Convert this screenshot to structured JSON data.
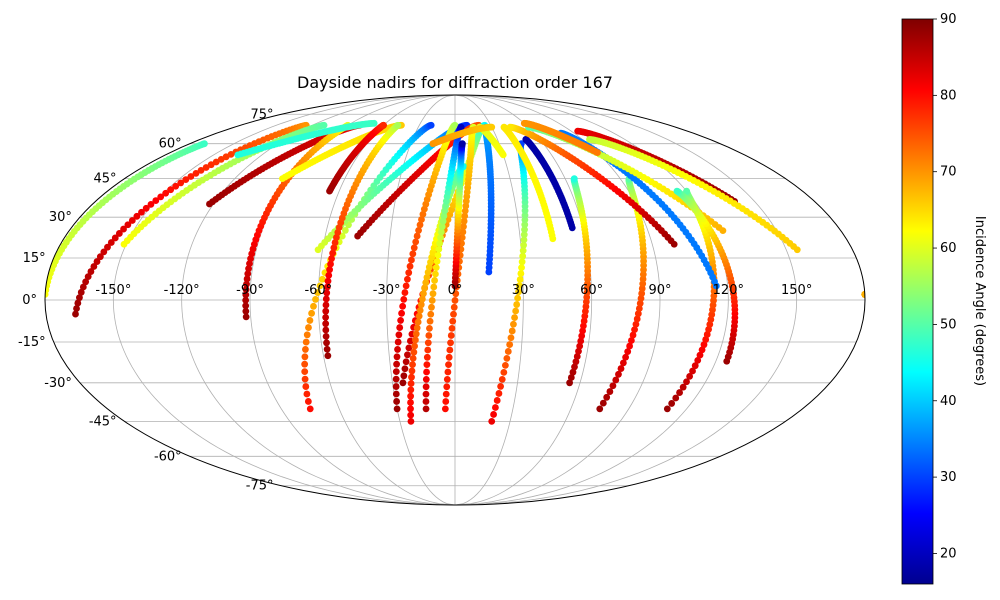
{
  "chart_data": {
    "type": "scatter",
    "projection": "mollweide",
    "title": "Dayside nadirs for diffraction order 167",
    "grid": true,
    "lon_ticks": [
      "-150°",
      "-120°",
      "-90°",
      "-60°",
      "-30°",
      "0°",
      "30°",
      "60°",
      "90°",
      "120°",
      "150°"
    ],
    "lon_tick_values": [
      -150,
      -120,
      -90,
      -60,
      -30,
      0,
      30,
      60,
      90,
      120,
      150
    ],
    "lat_ticks": [
      "-75°",
      "-60°",
      "-45°",
      "-30°",
      "-15°",
      "0°",
      "15°",
      "30°",
      "45°",
      "60°",
      "75°"
    ],
    "lat_tick_values": [
      -75,
      -60,
      -45,
      -30,
      -15,
      0,
      15,
      30,
      45,
      60,
      75
    ],
    "colorbar": {
      "label": "Incidence Angle (degrees)",
      "min": 16,
      "max": 90,
      "ticks": [
        20,
        30,
        40,
        50,
        60,
        70,
        80,
        90
      ],
      "tick_labels": [
        "20",
        "30",
        "40",
        "50",
        "60",
        "70",
        "80",
        "90"
      ],
      "colormap": "jet"
    },
    "marker_color_edge": "#000000",
    "tracks": [
      {
        "lon0": -180,
        "lat0": 2,
        "lon1": -170,
        "lat1": 60,
        "c0": 62,
        "c1": 48
      },
      {
        "lon0": -167,
        "lat0": -5,
        "lon1": -125,
        "lat1": 69,
        "c0": 88,
        "c1": 70
      },
      {
        "lon0": -151,
        "lat0": 20,
        "lon1": -110,
        "lat1": 69,
        "c0": 62,
        "c1": 50
      },
      {
        "lon0": -122,
        "lat0": 35,
        "lon1": -80,
        "lat1": 69,
        "c0": 88,
        "c1": 82
      },
      {
        "lon0": -92,
        "lat0": -6,
        "lon1": -90,
        "lat1": 69,
        "c0": 88,
        "c1": 60
      },
      {
        "lon0": -94,
        "lat0": 45,
        "lon1": -45,
        "lat1": 69,
        "c0": 62,
        "c1": 66
      },
      {
        "lon0": -65,
        "lat0": 40,
        "lon1": -60,
        "lat1": 69,
        "c0": 88,
        "c1": 78
      },
      {
        "lon0": -75,
        "lat0": -40,
        "lon1": -20,
        "lat1": 69,
        "c0": 80,
        "c1": 30
      },
      {
        "lon0": -62,
        "lat0": 18,
        "lon1": 10,
        "lat1": 69,
        "c0": 60,
        "c1": 28
      },
      {
        "lon0": -58,
        "lat0": -20,
        "lon1": -48,
        "lat1": 69,
        "c0": 88,
        "c1": 56
      },
      {
        "lon0": -45,
        "lat0": 23,
        "lon1": 20,
        "lat1": 69,
        "c0": 88,
        "c1": 75
      },
      {
        "lon0": -30,
        "lat0": -40,
        "lon1": 0,
        "lat1": 69,
        "c0": 88,
        "c1": 56
      },
      {
        "lon0": -25,
        "lat0": -30,
        "lon1": 25,
        "lat1": 69,
        "c0": 88,
        "c1": 44
      },
      {
        "lon0": -24,
        "lat0": -45,
        "lon1": 5,
        "lat1": 50,
        "c0": 82,
        "c1": 45
      },
      {
        "lon0": -15,
        "lat0": -40,
        "lon1": 5,
        "lat1": 68,
        "c0": 86,
        "c1": 20
      },
      {
        "lon0": -5,
        "lat0": -40,
        "lon1": 15,
        "lat1": 68,
        "c0": 80,
        "c1": 60
      },
      {
        "lon0": 0,
        "lat0": 5,
        "lon1": 5,
        "lat1": 60,
        "c0": 88,
        "c1": 18
      },
      {
        "lon0": 15,
        "lat0": 10,
        "lon1": 25,
        "lat1": 68,
        "c0": 30,
        "c1": 38
      },
      {
        "lon0": 20,
        "lat0": -45,
        "lon1": 45,
        "lat1": 60,
        "c0": 82,
        "c1": 30
      },
      {
        "lon0": 30,
        "lat0": 55,
        "lon1": 20,
        "lat1": 68,
        "c0": 62,
        "c1": 60
      },
      {
        "lon0": 45,
        "lat0": 22,
        "lon1": 40,
        "lat1": 68,
        "c0": 62,
        "c1": 64
      },
      {
        "lon0": 55,
        "lat0": 26,
        "lon1": 50,
        "lat1": 62,
        "c0": 18,
        "c1": 18
      },
      {
        "lon0": 55,
        "lat0": -30,
        "lon1": 65,
        "lat1": 45,
        "c0": 88,
        "c1": 46
      },
      {
        "lon0": 75,
        "lat0": -40,
        "lon1": 95,
        "lat1": 45,
        "c0": 88,
        "c1": 50
      },
      {
        "lon0": 100,
        "lat0": 20,
        "lon1": 45,
        "lat1": 68,
        "c0": 88,
        "c1": 64
      },
      {
        "lon0": 110,
        "lat0": -40,
        "lon1": 120,
        "lat1": 40,
        "c0": 88,
        "c1": 50
      },
      {
        "lon0": 115,
        "lat0": 5,
        "lon1": 80,
        "lat1": 65,
        "c0": 34,
        "c1": 34
      },
      {
        "lon0": 125,
        "lat0": 25,
        "lon1": 60,
        "lat1": 68,
        "c0": 68,
        "c1": 50
      },
      {
        "lon0": 125,
        "lat0": -22,
        "lon1": 115,
        "lat1": 40,
        "c0": 88,
        "c1": 48
      },
      {
        "lon0": 140,
        "lat0": 36,
        "lon1": 95,
        "lat1": 66,
        "c0": 88,
        "c1": 82
      },
      {
        "lon0": 155,
        "lat0": 18,
        "lon1": 95,
        "lat1": 62,
        "c0": 66,
        "c1": 58
      },
      {
        "lon0": -15,
        "lat0": 60,
        "lon1": 30,
        "lat1": 68,
        "c0": 70,
        "c1": 66
      },
      {
        "lon0": -135,
        "lat0": 55,
        "lon1": -70,
        "lat1": 70,
        "c0": 46,
        "c1": 48
      },
      {
        "lon0": 90,
        "lat0": 56,
        "lon1": 60,
        "lat1": 70,
        "c0": 72,
        "c1": 70
      },
      {
        "lon0": 180,
        "lat0": 2,
        "lon1": 180,
        "lat1": 2,
        "c0": 68,
        "c1": 68
      }
    ]
  }
}
